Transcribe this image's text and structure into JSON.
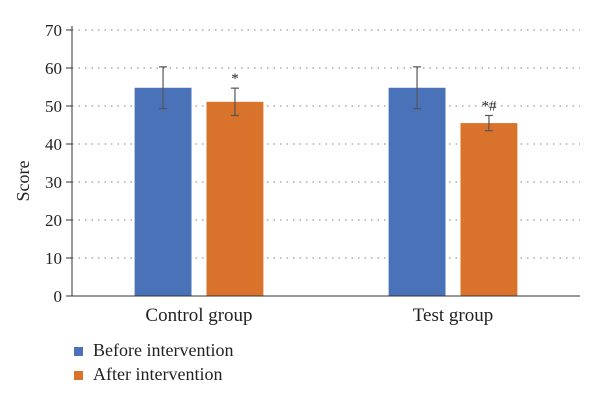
{
  "chart_data": {
    "type": "bar",
    "categories": [
      "Control group",
      "Test group"
    ],
    "series": [
      {
        "name": "Before intervention",
        "color": "#4a72b9",
        "values": [
          54.8,
          54.8
        ],
        "errors": [
          5.5,
          5.5
        ],
        "annotations": [
          "",
          ""
        ]
      },
      {
        "name": "After intervention",
        "color": "#d9732b",
        "values": [
          51.1,
          45.5
        ],
        "errors": [
          3.6,
          2.0
        ],
        "annotations": [
          "*",
          "*#"
        ]
      }
    ],
    "xlabel": "",
    "ylabel": "Score",
    "ylim": [
      0,
      70
    ],
    "yticks": [
      0,
      10,
      20,
      30,
      40,
      50,
      60,
      70
    ],
    "grid": true,
    "legend_position": "bottom-left"
  }
}
